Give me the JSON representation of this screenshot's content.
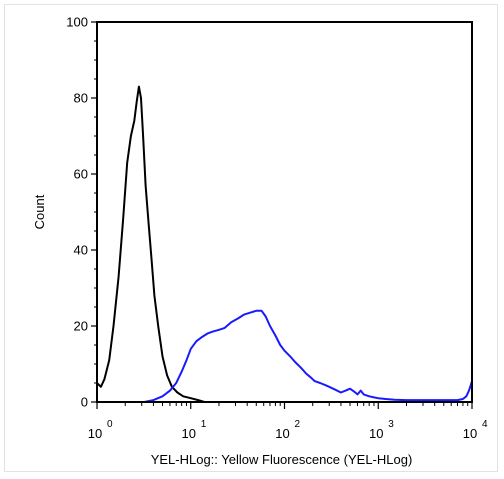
{
  "chart_data": {
    "type": "line",
    "title": "",
    "xlabel": "YEL-HLog:: Yellow Fluorescence (YEL-HLog)",
    "ylabel": "Count",
    "x_scale": "log",
    "xlim": [
      1,
      10000
    ],
    "ylim": [
      0,
      100
    ],
    "x_ticks": [
      {
        "base": "10",
        "exp": "0"
      },
      {
        "base": "10",
        "exp": "1"
      },
      {
        "base": "10",
        "exp": "2"
      },
      {
        "base": "10",
        "exp": "3"
      },
      {
        "base": "10",
        "exp": "4"
      }
    ],
    "y_ticks": [
      "0",
      "20",
      "40",
      "60",
      "80",
      "100"
    ],
    "grid": false,
    "legend": "none",
    "series": [
      {
        "color": "#000000",
        "x": [
          1.0,
          1.1,
          1.2,
          1.35,
          1.5,
          1.7,
          1.9,
          2.1,
          2.3,
          2.5,
          2.65,
          2.8,
          2.95,
          3.1,
          3.3,
          3.55,
          3.8,
          4.1,
          4.5,
          5.0,
          5.6,
          6.3,
          7.2,
          8.3,
          10.0,
          12.0,
          14.0
        ],
        "y": [
          5,
          4,
          6,
          11,
          20,
          33,
          48,
          63,
          70,
          74,
          79,
          83,
          80,
          70,
          57,
          47,
          38,
          28,
          20,
          12,
          7,
          4,
          2.5,
          1.5,
          1,
          0.5,
          0
        ]
      },
      {
        "color": "#1a1aff",
        "x": [
          3.2,
          4,
          5,
          6,
          7,
          8,
          9,
          10,
          11.5,
          13,
          15,
          17,
          20,
          23,
          27,
          32,
          37,
          43,
          50,
          57,
          63,
          70,
          80,
          90,
          100,
          115,
          130,
          150,
          170,
          190,
          210,
          240,
          270,
          300,
          350,
          400,
          450,
          500,
          550,
          600,
          650,
          700,
          800,
          900,
          1000,
          1200,
          1500,
          2000,
          3000,
          4000,
          5000,
          6000,
          7000,
          8000,
          8700,
          9300,
          9700,
          10000
        ],
        "y": [
          0,
          0.5,
          1.5,
          3,
          5,
          8,
          11,
          14,
          16,
          17,
          18,
          18.5,
          19,
          19.5,
          21,
          22,
          23,
          23.5,
          24,
          24,
          22.5,
          20,
          17.5,
          15,
          13.5,
          12,
          10.5,
          9,
          7.5,
          6.5,
          5.5,
          5,
          4.5,
          4,
          3.2,
          2.5,
          3,
          3.5,
          2.8,
          2,
          3,
          2,
          1.5,
          1.2,
          1,
          0.8,
          0.6,
          0.5,
          0.5,
          0.5,
          0.5,
          0.5,
          0.5,
          0.8,
          1.5,
          3,
          4.5,
          5.5
        ]
      }
    ]
  }
}
